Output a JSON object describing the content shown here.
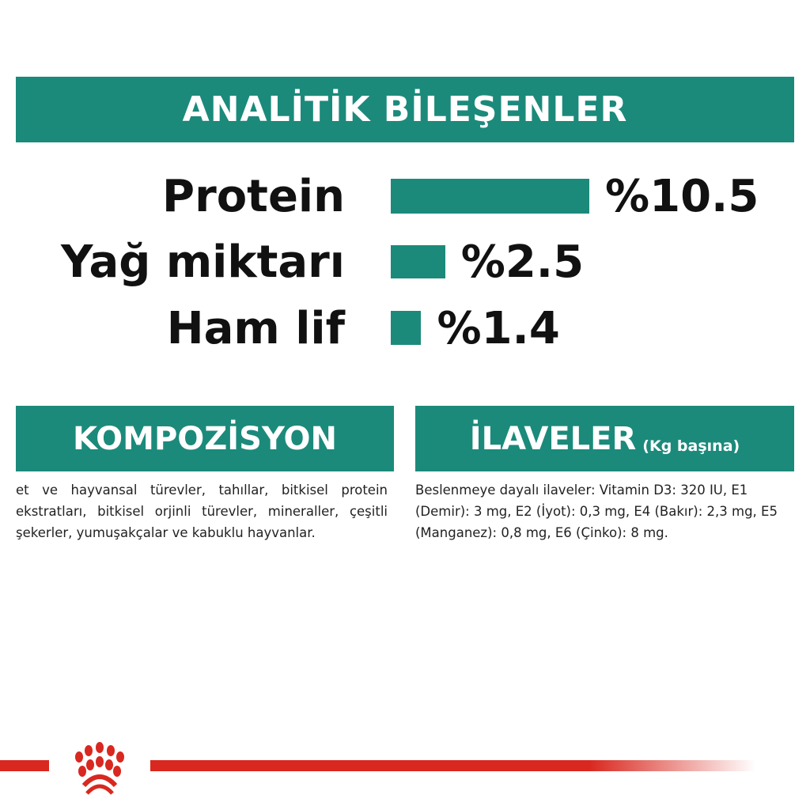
{
  "header": {
    "title": "ANALİTİK BİLEŞENLER"
  },
  "chart_data": {
    "type": "bar",
    "orientation": "horizontal",
    "categories": [
      "Protein",
      "Yağ miktarı",
      "Ham lif"
    ],
    "values": [
      10.5,
      2.5,
      1.4
    ],
    "value_labels": [
      "%10.5",
      "%2.5",
      "%1.4"
    ],
    "bar_color": "#1b8a7b"
  },
  "composition": {
    "title": "KOMPOZİSYON",
    "text": "et ve hayvansal türevler, tahıllar, bitkisel protein ekstratları, bitkisel orjinli türevler, mineraller, çeşitli şekerler, yumuşakçalar ve kabuklu hayvanlar."
  },
  "additives": {
    "title": "İLAVELER",
    "subtitle": "(Kg başına)",
    "text": "Beslenmeye dayalı ilaveler: Vitamin D3: 320 IU, E1 (Demir): 3 mg, E2 (İyot): 0,3 mg, E4 (Bakır): 2,3 mg, E5 (Manganez): 0,8 mg, E6 (Çinko): 8 mg."
  },
  "brand": {
    "logo": "royal-canin-crown-icon",
    "line_color": "#d9281f",
    "accent": "#1b8a7b"
  }
}
